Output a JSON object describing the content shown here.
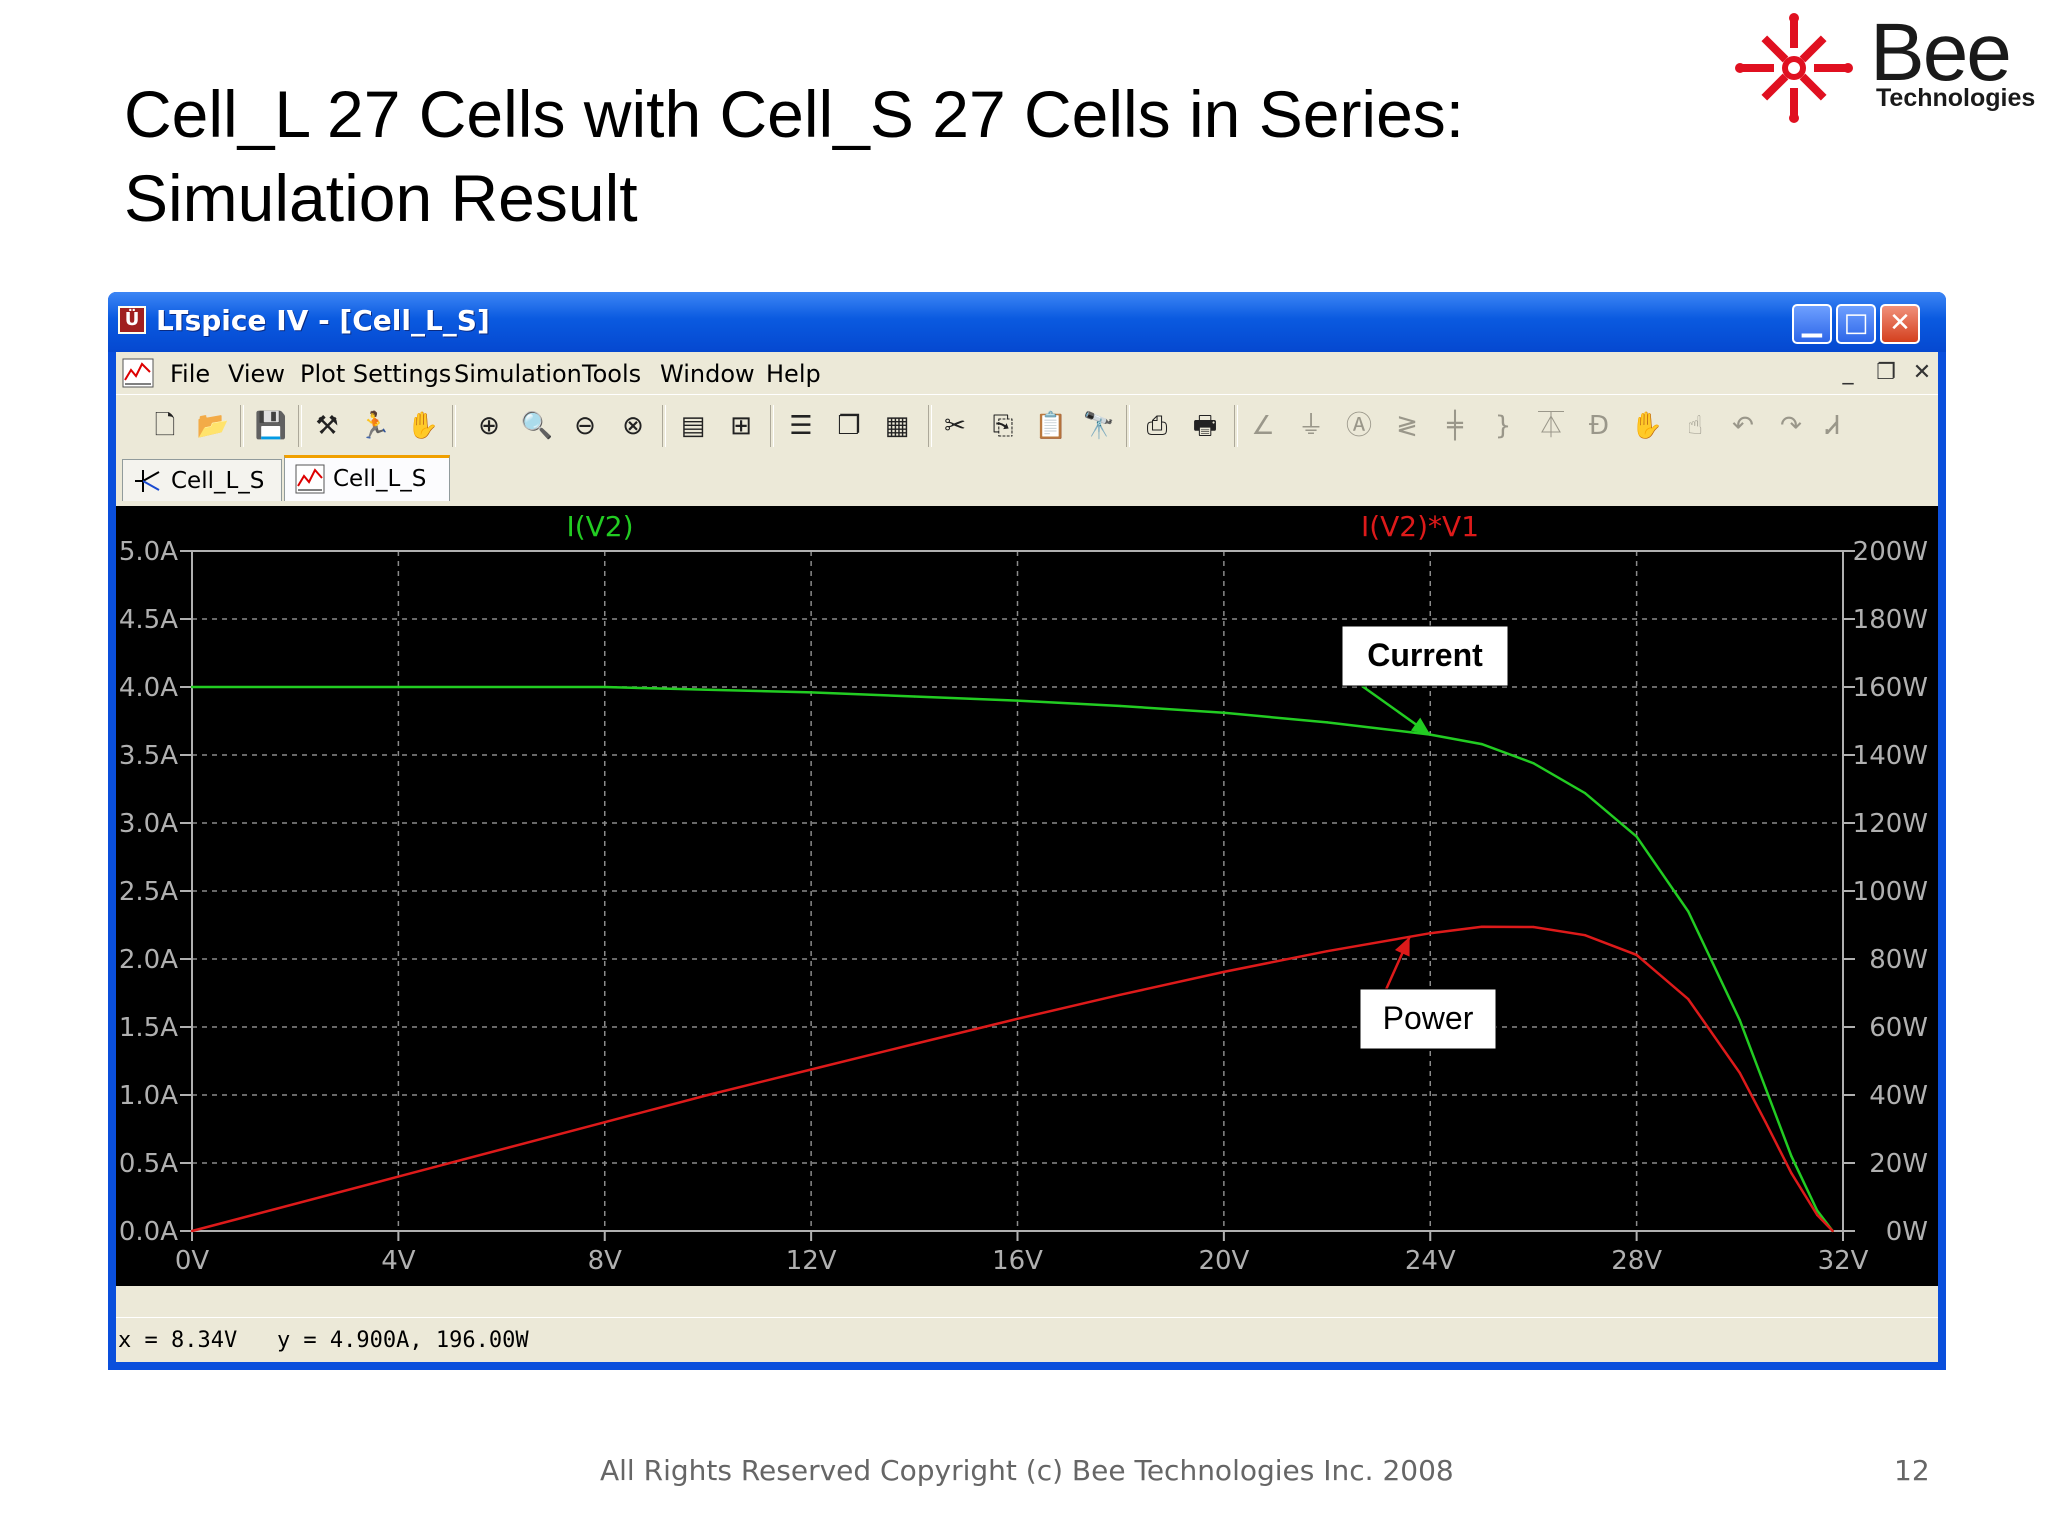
{
  "slide": {
    "title_line1": "Cell_L 27 Cells with Cell_S 27 Cells in Series:",
    "title_line2": "Simulation Result",
    "footer": "All Rights Reserved Copyright (c) Bee Technologies Inc. 2008",
    "page_number": "12"
  },
  "logo": {
    "name": "Bee",
    "tagline": "Technologies",
    "color": "#e01020"
  },
  "window": {
    "title": "LTspice IV - [Cell_L_S]",
    "app_icon": "ltspice-icon",
    "controls": [
      "minimize-icon",
      "maximize-icon",
      "close-icon"
    ]
  },
  "menubar": {
    "items": [
      "File",
      "View",
      "Plot Settings",
      "Simulation",
      "Tools",
      "Window",
      "Help"
    ],
    "mdi_controls": [
      "_",
      "❐",
      "✕"
    ]
  },
  "toolbar": {
    "icons": [
      "new-schematic-icon",
      "open-icon",
      "save-icon",
      "control-panel-icon",
      "run-icon",
      "halt-icon",
      "zoom-in-icon",
      "zoom-area-icon",
      "zoom-out-icon",
      "zoom-cancel-icon",
      "autorange-icon",
      "cursor-icon",
      "tile-horizontal-icon",
      "cascade-icon",
      "tile-vertical-icon",
      "cut-icon",
      "copy-icon",
      "paste-icon",
      "find-icon",
      "print-preview-icon",
      "print-icon",
      "wire-icon",
      "ground-icon",
      "label-icon",
      "resistor-icon",
      "capacitor-icon",
      "inductor-icon",
      "diode-icon",
      "component-icon",
      "move-icon",
      "drag-icon",
      "undo-icon",
      "redo-icon",
      "text-icon"
    ]
  },
  "tabs": [
    {
      "label": "Cell_L_S",
      "icon": "schematic-icon",
      "active": false
    },
    {
      "label": "Cell_L_S",
      "icon": "waveform-icon",
      "active": true
    }
  ],
  "chart_data": {
    "type": "line",
    "x_ticks": [
      "0V",
      "4V",
      "8V",
      "12V",
      "16V",
      "20V",
      "24V",
      "28V",
      "32V"
    ],
    "xlim": [
      0,
      32
    ],
    "y_left_ticks": [
      "0.0A",
      "0.5A",
      "1.0A",
      "1.5A",
      "2.0A",
      "2.5A",
      "3.0A",
      "3.5A",
      "4.0A",
      "4.5A",
      "5.0A"
    ],
    "ylim_left": [
      0,
      5
    ],
    "y_right_ticks": [
      "0W",
      "20W",
      "40W",
      "60W",
      "80W",
      "100W",
      "120W",
      "140W",
      "160W",
      "180W",
      "200W"
    ],
    "ylim_right": [
      0,
      200
    ],
    "grid": true,
    "series": [
      {
        "name": "I(V2)",
        "axis": "left",
        "color": "#22cc22",
        "x": [
          0,
          4,
          8,
          9,
          10,
          12,
          14,
          16,
          18,
          20,
          22,
          24,
          25,
          26,
          27,
          28,
          29,
          30,
          30.5,
          31,
          31.5,
          31.8
        ],
        "y": [
          4.0,
          4.0,
          4.0,
          3.99,
          3.98,
          3.96,
          3.93,
          3.9,
          3.86,
          3.81,
          3.74,
          3.65,
          3.58,
          3.44,
          3.22,
          2.9,
          2.35,
          1.55,
          1.05,
          0.55,
          0.15,
          0.0
        ]
      },
      {
        "name": "I(V2)*V1",
        "axis": "right",
        "color": "#dd1a1a",
        "x": [
          0,
          4,
          8,
          10,
          12,
          14,
          16,
          18,
          20,
          22,
          24,
          25,
          26,
          27,
          28,
          29,
          30,
          30.5,
          31,
          31.5,
          31.8
        ],
        "y": [
          0,
          16,
          32,
          40,
          47.5,
          55,
          62.4,
          69.5,
          76.2,
          82.3,
          87.6,
          89.5,
          89.4,
          87.0,
          81.2,
          68.2,
          46.5,
          32.0,
          17.0,
          4.7,
          0
        ]
      }
    ],
    "annotations": [
      {
        "text": "Current",
        "bold": true,
        "point_x": 24,
        "point_y": 3.65,
        "axis": "left"
      },
      {
        "text": "Power",
        "bold": false,
        "point_x": 23.6,
        "point_y": 86.5,
        "axis": "right"
      }
    ]
  },
  "status": {
    "readout": "x = 8.34V   y = 4.900A, 196.00W"
  }
}
